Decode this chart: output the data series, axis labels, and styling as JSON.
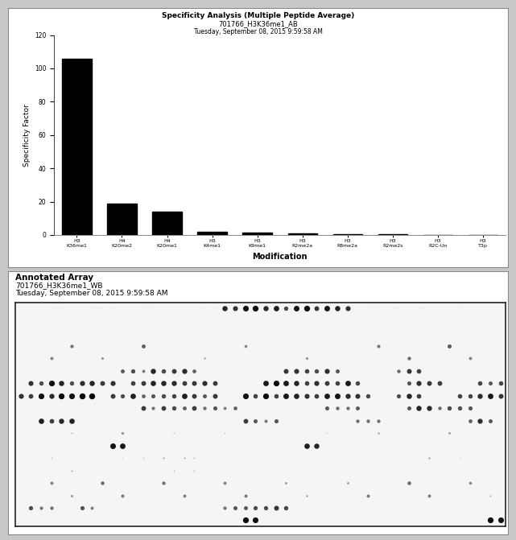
{
  "title_line1": "Specificity Analysis (Multiple Peptide Average)",
  "title_line2": "701766_H3K36me1_AB",
  "title_line3": "Tuesday, September 08, 2015 9:59:58 AM",
  "bar_labels": [
    "H3 K36me1",
    "H4 K20me2",
    "H4 K20me1",
    "H3 K4me1",
    "H3 K9me1",
    "H3 R2me2a",
    "H3 R8me2a",
    "H3 R2me2s",
    "H3 R2C-Un",
    "H3 T3p"
  ],
  "bar_values": [
    106,
    19,
    14,
    2.0,
    1.5,
    0.8,
    0.5,
    0.3,
    0.1,
    0.05
  ],
  "bar_color": "#000000",
  "ylabel": "Specificity Factor",
  "xlabel": "Modification",
  "ylim": [
    0,
    120
  ],
  "yticks": [
    0,
    20,
    40,
    60,
    80,
    100,
    120
  ],
  "annotated_array_title": "Annotated Array",
  "annotated_array_line2": "701766_H3K36me1_WB",
  "annotated_array_line3": "Tuesday, September 08, 2015 9:59:58 AM",
  "background_color": "#ffffff",
  "border_color": "#000000",
  "chart_bg": "#ffffff",
  "outer_bg": "#c8c8c8",
  "array_bg": "#e8e8e8"
}
